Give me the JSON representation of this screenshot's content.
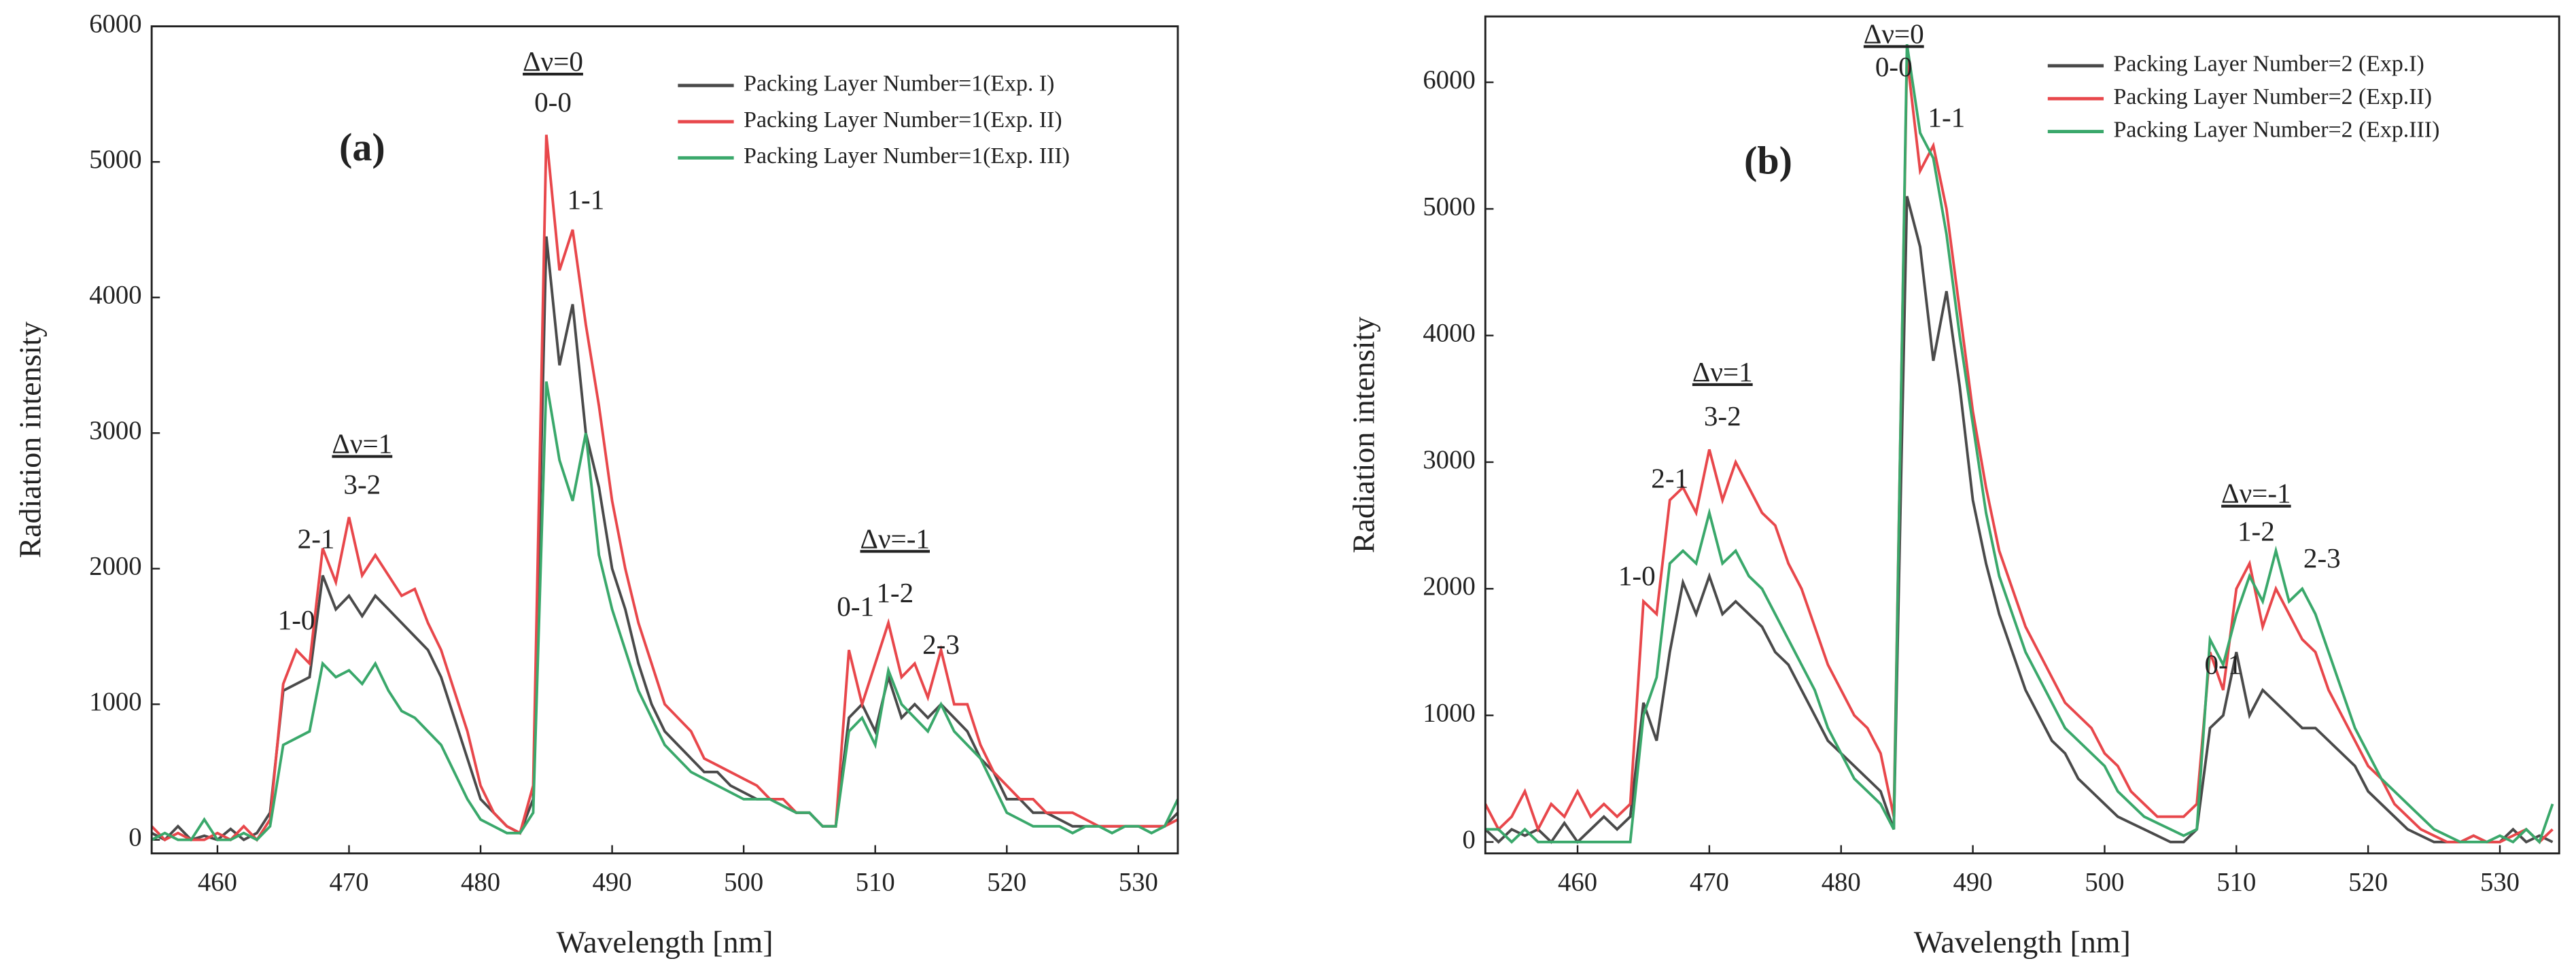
{
  "chart_data": [
    {
      "type": "line",
      "panel_label": "(a)",
      "xlabel": "Wavelength [nm]",
      "ylabel": "Radiation intensity",
      "legend": "upper right",
      "xlim": [
        455,
        533
      ],
      "ylim": [
        -100,
        6000
      ],
      "xticks": [
        460,
        470,
        480,
        490,
        500,
        510,
        520,
        530
      ],
      "yticks": [
        0,
        1000,
        2000,
        3000,
        4000,
        5000,
        6000
      ],
      "annotations": [
        "Δν=1",
        "3-2",
        "2-1",
        "1-0",
        "Δν=0",
        "0-0",
        "1-1",
        "Δν=-1",
        "0-1",
        "1-2",
        "2-3"
      ],
      "x": [
        455,
        456,
        457,
        458,
        459,
        460,
        461,
        462,
        463,
        464,
        465,
        466,
        467,
        468,
        469,
        470,
        471,
        472,
        473,
        474,
        475,
        476,
        477,
        478,
        479,
        480,
        481,
        482,
        483,
        484,
        485,
        486,
        487,
        488,
        489,
        490,
        491,
        492,
        493,
        494,
        495,
        496,
        497,
        498,
        499,
        500,
        501,
        502,
        503,
        504,
        505,
        506,
        507,
        508,
        509,
        510,
        511,
        512,
        513,
        514,
        515,
        516,
        517,
        518,
        519,
        520,
        521,
        522,
        523,
        524,
        525,
        526,
        527,
        528,
        529,
        530,
        531,
        532,
        533
      ],
      "series": [
        {
          "name": "Packing Layer Number=1(Exp. I)",
          "color": "#4a4a4a",
          "values": [
            50,
            0,
            100,
            0,
            30,
            0,
            80,
            0,
            50,
            200,
            1100,
            1150,
            1200,
            1950,
            1700,
            1800,
            1650,
            1800,
            1700,
            1600,
            1500,
            1400,
            1200,
            900,
            600,
            300,
            200,
            100,
            50,
            300,
            4450,
            3500,
            3950,
            3000,
            2600,
            2000,
            1700,
            1300,
            1000,
            800,
            700,
            600,
            500,
            500,
            400,
            350,
            300,
            300,
            250,
            200,
            200,
            100,
            100,
            900,
            1000,
            800,
            1200,
            900,
            1000,
            900,
            1000,
            900,
            800,
            600,
            500,
            300,
            300,
            200,
            200,
            150,
            100,
            100,
            100,
            100,
            100,
            100,
            100,
            100,
            200
          ]
        },
        {
          "name": "Packing Layer Number=1(Exp. II)",
          "color": "#e8474b",
          "values": [
            100,
            0,
            50,
            0,
            0,
            50,
            0,
            100,
            0,
            150,
            1150,
            1400,
            1300,
            2150,
            1900,
            2380,
            1950,
            2100,
            1950,
            1800,
            1850,
            1600,
            1400,
            1100,
            800,
            400,
            200,
            100,
            50,
            400,
            5200,
            4200,
            4500,
            3800,
            3200,
            2500,
            2000,
            1600,
            1300,
            1000,
            900,
            800,
            600,
            550,
            500,
            450,
            400,
            300,
            300,
            200,
            200,
            100,
            100,
            1400,
            1000,
            1300,
            1600,
            1200,
            1300,
            1050,
            1400,
            1000,
            1000,
            700,
            500,
            400,
            300,
            300,
            200,
            200,
            200,
            150,
            100,
            100,
            100,
            100,
            100,
            100,
            150
          ]
        },
        {
          "name": "Packing Layer Number=1(Exp. III)",
          "color": "#3aa86b",
          "values": [
            0,
            50,
            0,
            0,
            150,
            0,
            0,
            50,
            0,
            100,
            700,
            750,
            800,
            1300,
            1200,
            1250,
            1150,
            1300,
            1100,
            950,
            900,
            800,
            700,
            500,
            300,
            150,
            100,
            50,
            50,
            200,
            3380,
            2800,
            2500,
            3000,
            2100,
            1700,
            1400,
            1100,
            900,
            700,
            600,
            500,
            450,
            400,
            350,
            300,
            300,
            300,
            250,
            200,
            200,
            100,
            100,
            800,
            900,
            700,
            1250,
            1000,
            900,
            800,
            1000,
            800,
            700,
            600,
            400,
            200,
            150,
            100,
            100,
            100,
            50,
            100,
            100,
            50,
            100,
            100,
            50,
            100,
            300
          ]
        }
      ]
    },
    {
      "type": "line",
      "panel_label": "(b)",
      "xlabel": "Wavelength [nm]",
      "ylabel": "Radiation intensity",
      "legend": "upper right",
      "xlim": [
        453,
        534.5
      ],
      "ylim": [
        -90,
        6520
      ],
      "xticks": [
        460,
        470,
        480,
        490,
        500,
        510,
        520,
        530
      ],
      "yticks": [
        0,
        1000,
        2000,
        3000,
        4000,
        5000,
        6000
      ],
      "annotations": [
        "Δν=1",
        "3-2",
        "2-1",
        "1-0",
        "Δν=0",
        "0-0",
        "1-1",
        "Δν=-1",
        "1-2",
        "2-3",
        "0-1"
      ],
      "x": [
        453,
        454,
        455,
        456,
        457,
        458,
        459,
        460,
        461,
        462,
        463,
        464,
        465,
        466,
        467,
        468,
        469,
        470,
        471,
        472,
        473,
        474,
        475,
        476,
        477,
        478,
        479,
        480,
        481,
        482,
        483,
        484,
        485,
        486,
        487,
        488,
        489,
        490,
        491,
        492,
        493,
        494,
        495,
        496,
        497,
        498,
        499,
        500,
        501,
        502,
        503,
        504,
        505,
        506,
        507,
        508,
        509,
        510,
        511,
        512,
        513,
        514,
        515,
        516,
        517,
        518,
        519,
        520,
        521,
        522,
        523,
        524,
        525,
        526,
        527,
        528,
        529,
        530,
        531,
        532,
        533,
        534
      ],
      "series": [
        {
          "name": "Packing Layer Number=2 (Exp.I)",
          "color": "#4a4a4a",
          "values": [
            100,
            0,
            100,
            50,
            100,
            0,
            150,
            0,
            100,
            200,
            100,
            200,
            1100,
            800,
            1500,
            2050,
            1800,
            2100,
            1800,
            1900,
            1800,
            1700,
            1500,
            1400,
            1200,
            1000,
            800,
            700,
            600,
            500,
            400,
            100,
            5100,
            4700,
            3800,
            4350,
            3600,
            2700,
            2200,
            1800,
            1500,
            1200,
            1000,
            800,
            700,
            500,
            400,
            300,
            200,
            150,
            100,
            50,
            0,
            0,
            100,
            900,
            1000,
            1500,
            1000,
            1200,
            1100,
            1000,
            900,
            900,
            800,
            700,
            600,
            400,
            300,
            200,
            100,
            50,
            0,
            0,
            0,
            50,
            0,
            0,
            100,
            0,
            50,
            0
          ]
        },
        {
          "name": "Packing Layer Number=2 (Exp.II)",
          "color": "#e8474b",
          "values": [
            300,
            100,
            200,
            400,
            100,
            300,
            200,
            400,
            200,
            300,
            200,
            300,
            1900,
            1800,
            2700,
            2800,
            2600,
            3100,
            2700,
            3000,
            2800,
            2600,
            2500,
            2200,
            2000,
            1700,
            1400,
            1200,
            1000,
            900,
            700,
            200,
            6200,
            5300,
            5500,
            5000,
            4200,
            3400,
            2800,
            2300,
            2000,
            1700,
            1500,
            1300,
            1100,
            1000,
            900,
            700,
            600,
            400,
            300,
            200,
            200,
            200,
            300,
            1500,
            1200,
            2000,
            2200,
            1700,
            2000,
            1800,
            1600,
            1500,
            1200,
            1000,
            800,
            600,
            500,
            300,
            200,
            100,
            50,
            0,
            0,
            50,
            0,
            0,
            50,
            100,
            0,
            100
          ]
        },
        {
          "name": "Packing Layer Number=2 (Exp.III)",
          "color": "#3aa86b",
          "values": [
            100,
            100,
            0,
            100,
            0,
            0,
            0,
            0,
            0,
            0,
            0,
            0,
            1000,
            1300,
            2200,
            2300,
            2200,
            2600,
            2200,
            2300,
            2100,
            2000,
            1800,
            1600,
            1400,
            1200,
            900,
            700,
            500,
            400,
            300,
            100,
            6300,
            5600,
            5400,
            4800,
            4000,
            3300,
            2600,
            2100,
            1800,
            1500,
            1300,
            1100,
            900,
            800,
            700,
            600,
            400,
            300,
            200,
            150,
            100,
            50,
            100,
            1600,
            1400,
            1800,
            2100,
            1900,
            2300,
            1900,
            2000,
            1800,
            1500,
            1200,
            900,
            700,
            500,
            400,
            300,
            200,
            100,
            50,
            0,
            0,
            0,
            50,
            0,
            100,
            0,
            300
          ]
        }
      ]
    }
  ]
}
